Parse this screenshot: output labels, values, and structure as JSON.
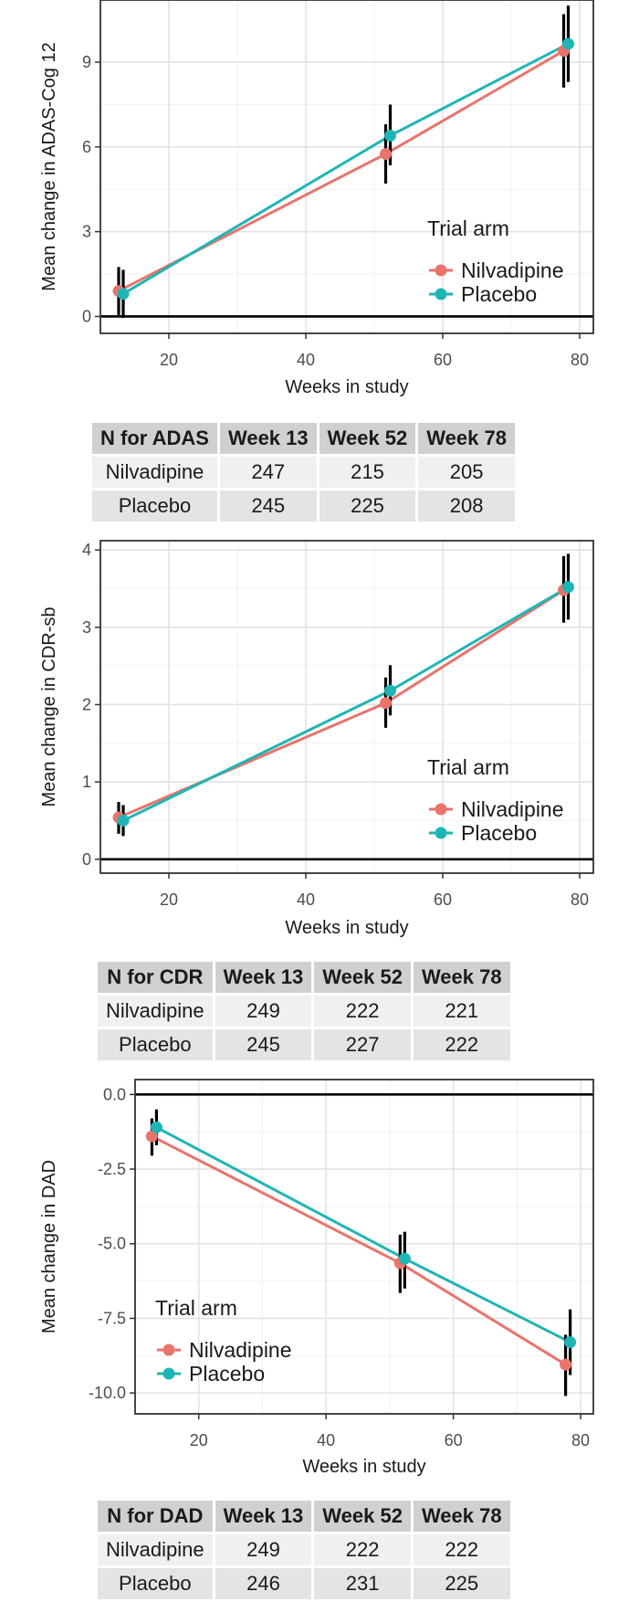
{
  "colors": {
    "nilvadipine": "#E8746C",
    "placebo": "#1FB5B5"
  },
  "chart_data": [
    {
      "type": "line",
      "xlabel": "Weeks in study",
      "ylabel": "Mean change in ADAS-Cog 12",
      "xlim": [
        10,
        82
      ],
      "ylim": [
        -0.6,
        11.2
      ],
      "xticks": [
        "20",
        "40",
        "60",
        "80"
      ],
      "yticks": [
        "0",
        "3",
        "6",
        "9"
      ],
      "grid": true,
      "legend": {
        "title": "Trial arm",
        "position": "bottom-right"
      },
      "series": [
        {
          "name": "Nilvadipine",
          "x": [
            13,
            52,
            78
          ],
          "y": [
            0.9,
            5.75,
            9.4
          ],
          "lower": [
            0.05,
            4.7,
            8.1
          ],
          "upper": [
            1.75,
            6.8,
            10.7
          ]
        },
        {
          "name": "Placebo",
          "x": [
            13,
            52,
            78
          ],
          "y": [
            0.8,
            6.4,
            9.65
          ],
          "lower": [
            -0.05,
            5.35,
            8.3
          ],
          "upper": [
            1.65,
            7.5,
            11.0
          ]
        }
      ]
    },
    {
      "type": "line",
      "xlabel": "Weeks in study",
      "ylabel": "Mean change in CDR-sb",
      "xlim": [
        10,
        82
      ],
      "ylim": [
        -0.18,
        4.12
      ],
      "xticks": [
        "20",
        "40",
        "60",
        "80"
      ],
      "yticks": [
        "0",
        "1",
        "2",
        "3",
        "4"
      ],
      "grid": true,
      "legend": {
        "title": "Trial arm",
        "position": "bottom-right"
      },
      "series": [
        {
          "name": "Nilvadipine",
          "x": [
            13,
            52,
            78
          ],
          "y": [
            0.54,
            2.02,
            3.48
          ],
          "lower": [
            0.33,
            1.7,
            3.06
          ],
          "upper": [
            0.74,
            2.35,
            3.92
          ]
        },
        {
          "name": "Placebo",
          "x": [
            13,
            52,
            78
          ],
          "y": [
            0.5,
            2.18,
            3.52
          ],
          "lower": [
            0.3,
            1.86,
            3.1
          ],
          "upper": [
            0.7,
            2.51,
            3.95
          ]
        }
      ]
    },
    {
      "type": "line",
      "xlabel": "Weeks in study",
      "ylabel": "Mean change in DAD",
      "xlim": [
        10,
        82
      ],
      "ylim": [
        -10.7,
        0.5
      ],
      "xticks": [
        "20",
        "40",
        "60",
        "80"
      ],
      "yticks": [
        "0.0",
        "-2.5",
        "-5.0",
        "-7.5",
        "-10.0"
      ],
      "grid": true,
      "legend": {
        "title": "Trial arm",
        "position": "bottom-left"
      },
      "series": [
        {
          "name": "Nilvadipine",
          "x": [
            13,
            52,
            78
          ],
          "y": [
            -1.4,
            -5.65,
            -9.05
          ],
          "lower": [
            -2.05,
            -6.65,
            -10.1
          ],
          "upper": [
            -0.8,
            -4.7,
            -8.05
          ]
        },
        {
          "name": "Placebo",
          "x": [
            13,
            52,
            78
          ],
          "y": [
            -1.1,
            -5.5,
            -8.3
          ],
          "lower": [
            -1.7,
            -6.5,
            -9.4
          ],
          "upper": [
            -0.5,
            -4.6,
            -7.2
          ]
        }
      ]
    }
  ],
  "tables": [
    {
      "header": [
        "N for ADAS",
        "Week 13",
        "Week 52",
        "Week 78"
      ],
      "rows": [
        [
          "Nilvadipine",
          "247",
          "215",
          "205"
        ],
        [
          "Placebo",
          "245",
          "225",
          "208"
        ]
      ]
    },
    {
      "header": [
        "N for CDR",
        "Week 13",
        "Week 52",
        "Week 78"
      ],
      "rows": [
        [
          "Nilvadipine",
          "249",
          "222",
          "221"
        ],
        [
          "Placebo",
          "245",
          "227",
          "222"
        ]
      ]
    },
    {
      "header": [
        "N for DAD",
        "Week 13",
        "Week 52",
        "Week 78"
      ],
      "rows": [
        [
          "Nilvadipine",
          "249",
          "222",
          "222"
        ],
        [
          "Placebo",
          "246",
          "231",
          "225"
        ]
      ]
    }
  ]
}
